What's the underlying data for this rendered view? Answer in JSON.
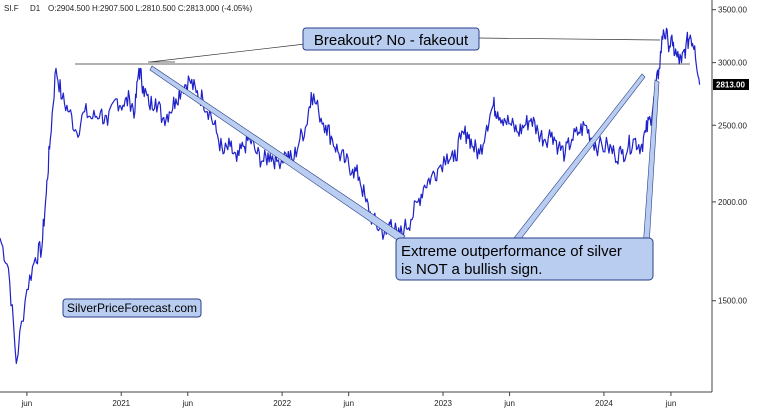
{
  "header": {
    "symbol": "SI.F",
    "timeframe": "D1",
    "ohlc": "O:2904.500  H:2907.500  L:2810.500  C:2813.000  (-4.05%)"
  },
  "colors": {
    "series": "#1f22c8",
    "callout_fill": "#b9cdf0",
    "callout_border": "#2a3f8a",
    "price_tag": "#000000",
    "axis": "#444444"
  },
  "annotations": {
    "breakout": "Breakout? No - fakeout",
    "extreme_line1": "Extreme outperformance of silver",
    "extreme_line2": "is NOT a bullish sign.",
    "watermark": "SilverPriceForecast.com"
  },
  "price_tag": "2813.00",
  "chart_data": {
    "type": "line",
    "title": "",
    "xlabel": "",
    "ylabel": "",
    "y_scale": "log",
    "ylim": [
      1150,
      3600
    ],
    "xlim": [
      "2020-04-01",
      "2024-08-15"
    ],
    "y_ticks": [
      "3500.00",
      "3000.00",
      "2500.00",
      "2000.00",
      "1500.00"
    ],
    "y_tick_values": [
      3500,
      3000,
      2500,
      2000,
      1500
    ],
    "x_ticks": [
      "jun",
      "2021",
      "jun",
      "2022",
      "jun",
      "2023",
      "jun",
      "2024",
      "jun"
    ],
    "x_tick_dates": [
      "2020-06-01",
      "2021-01-01",
      "2021-06-01",
      "2022-01-01",
      "2022-06-01",
      "2023-01-01",
      "2023-06-01",
      "2024-01-01",
      "2024-06-01"
    ],
    "grid": false,
    "legend": "none",
    "series": [
      {
        "x": [
          "2020-04-01",
          "2020-04-20",
          "2020-05-08",
          "2020-06-01",
          "2020-06-20",
          "2020-07-05",
          "2020-07-15",
          "2020-07-24",
          "2020-08-06",
          "2020-08-20",
          "2020-09-05",
          "2020-09-22",
          "2020-10-10",
          "2020-10-28",
          "2020-11-15",
          "2020-12-01",
          "2020-12-20",
          "2021-01-05",
          "2021-01-20",
          "2021-02-01",
          "2021-02-10",
          "2021-02-20",
          "2021-03-05",
          "2021-03-20",
          "2021-04-05",
          "2021-04-20",
          "2021-05-05",
          "2021-05-20",
          "2021-06-05",
          "2021-06-20",
          "2021-07-05",
          "2021-07-20",
          "2021-08-05",
          "2021-08-20",
          "2021-09-05",
          "2021-09-20",
          "2021-10-05",
          "2021-10-20",
          "2021-11-05",
          "2021-11-20",
          "2021-12-05",
          "2021-12-20",
          "2022-01-10",
          "2022-01-25",
          "2022-02-10",
          "2022-02-25",
          "2022-03-08",
          "2022-03-25",
          "2022-04-10",
          "2022-04-25",
          "2022-05-10",
          "2022-05-25",
          "2022-06-10",
          "2022-06-25",
          "2022-07-10",
          "2022-07-25",
          "2022-08-10",
          "2022-08-25",
          "2022-09-05",
          "2022-09-20",
          "2022-10-05",
          "2022-10-20",
          "2022-11-05",
          "2022-11-20",
          "2022-12-05",
          "2022-12-20",
          "2023-01-10",
          "2023-01-25",
          "2023-02-10",
          "2023-02-25",
          "2023-03-10",
          "2023-03-25",
          "2023-04-10",
          "2023-04-25",
          "2023-05-05",
          "2023-05-20",
          "2023-06-05",
          "2023-06-20",
          "2023-07-05",
          "2023-07-20",
          "2023-08-05",
          "2023-08-20",
          "2023-09-05",
          "2023-09-20",
          "2023-10-05",
          "2023-10-20",
          "2023-11-05",
          "2023-11-20",
          "2023-12-05",
          "2023-12-20",
          "2024-01-10",
          "2024-01-25",
          "2024-02-10",
          "2024-02-25",
          "2024-03-10",
          "2024-03-25",
          "2024-04-05",
          "2024-04-15",
          "2024-04-25",
          "2024-05-05",
          "2024-05-15",
          "2024-05-25",
          "2024-06-05",
          "2024-06-15",
          "2024-06-25",
          "2024-07-05",
          "2024-07-15",
          "2024-07-25",
          "2024-08-05"
        ],
        "y": [
          1800,
          1650,
          1250,
          1550,
          1700,
          1750,
          2050,
          2400,
          2950,
          2700,
          2600,
          2450,
          2600,
          2550,
          2600,
          2500,
          2700,
          2650,
          2700,
          2600,
          2950,
          2800,
          2650,
          2700,
          2550,
          2600,
          2700,
          2800,
          2850,
          2750,
          2700,
          2600,
          2450,
          2300,
          2350,
          2250,
          2350,
          2400,
          2300,
          2250,
          2300,
          2250,
          2300,
          2250,
          2400,
          2500,
          2750,
          2600,
          2500,
          2400,
          2300,
          2250,
          2200,
          2150,
          2000,
          1900,
          1850,
          1820,
          1900,
          1800,
          1850,
          1900,
          2000,
          2100,
          2150,
          2200,
          2300,
          2250,
          2400,
          2450,
          2350,
          2300,
          2500,
          2650,
          2600,
          2550,
          2500,
          2450,
          2500,
          2550,
          2450,
          2400,
          2450,
          2350,
          2300,
          2400,
          2450,
          2500,
          2400,
          2350,
          2350,
          2300,
          2300,
          2350,
          2400,
          2350,
          2450,
          2550,
          2700,
          2950,
          3300,
          3200,
          3150,
          3050,
          3000,
          3150,
          3250,
          3150,
          2813
        ]
      }
    ]
  }
}
